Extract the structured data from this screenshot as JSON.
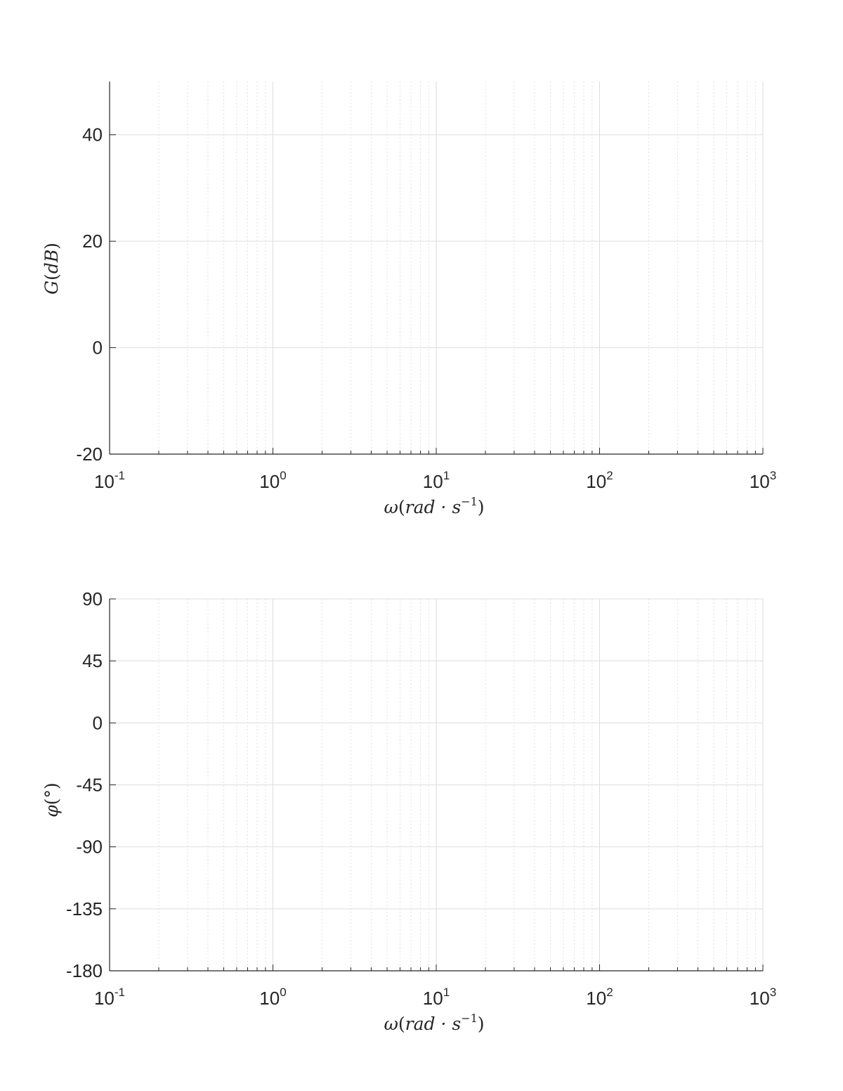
{
  "chart_data": [
    {
      "type": "line",
      "x_scale": "log",
      "xlim": [
        0.1,
        1000
      ],
      "ylim": [
        -20,
        50
      ],
      "xticks": [
        0.1,
        1,
        10,
        100,
        1000
      ],
      "xtick_labels": [
        {
          "base": "10",
          "exp": "-1"
        },
        {
          "base": "10",
          "exp": "0"
        },
        {
          "base": "10",
          "exp": "1"
        },
        {
          "base": "10",
          "exp": "2"
        },
        {
          "base": "10",
          "exp": "3"
        }
      ],
      "yticks": [
        -20,
        0,
        20,
        40
      ],
      "ytick_labels": [
        "-20",
        "0",
        "20",
        "40"
      ],
      "xlabel": {
        "sym": "ω",
        "open": "(",
        "body": "rad · s",
        "sup": "−1",
        "close": ")"
      },
      "ylabel": {
        "sym": "G",
        "open": "(",
        "body": "dB",
        "close": ")"
      },
      "grid": true,
      "minor_grid": true,
      "series": []
    },
    {
      "type": "line",
      "x_scale": "log",
      "xlim": [
        0.1,
        1000
      ],
      "ylim": [
        -180,
        90
      ],
      "xticks": [
        0.1,
        1,
        10,
        100,
        1000
      ],
      "xtick_labels": [
        {
          "base": "10",
          "exp": "-1"
        },
        {
          "base": "10",
          "exp": "0"
        },
        {
          "base": "10",
          "exp": "1"
        },
        {
          "base": "10",
          "exp": "2"
        },
        {
          "base": "10",
          "exp": "3"
        }
      ],
      "yticks": [
        -180,
        -135,
        -90,
        -45,
        0,
        45,
        90
      ],
      "ytick_labels": [
        "-180",
        "-135",
        "-90",
        "-45",
        "0",
        "45",
        "90"
      ],
      "xlabel": {
        "sym": "ω",
        "open": "(",
        "body": "rad · s",
        "sup": "−1",
        "close": ")"
      },
      "ylabel": {
        "sym": "φ",
        "open": "(",
        "body": "°",
        "close": ")"
      },
      "grid": true,
      "minor_grid": true,
      "series": []
    }
  ]
}
